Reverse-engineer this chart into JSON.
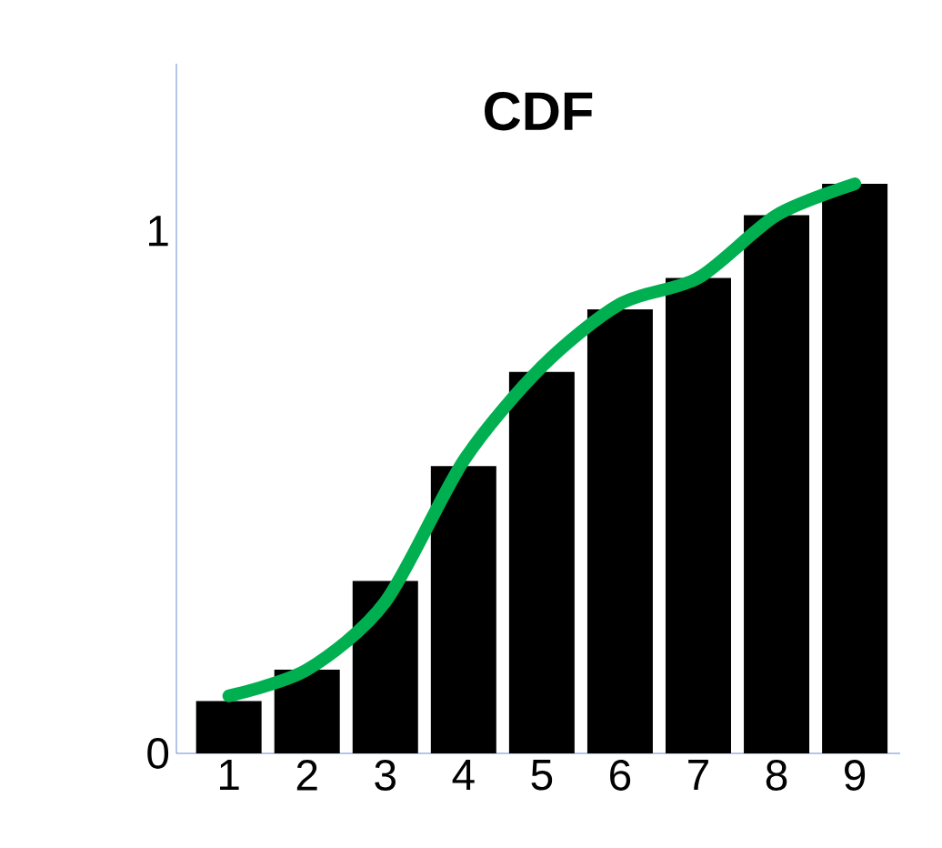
{
  "chart_data": {
    "type": "bar",
    "title": "CDF",
    "categories": [
      "1",
      "2",
      "3",
      "4",
      "5",
      "6",
      "7",
      "8",
      "9"
    ],
    "series": [
      {
        "color": "#000000",
        "values": [
          0.1,
          0.16,
          0.33,
          0.55,
          0.73,
          0.85,
          0.91,
          1.03,
          1.09
        ]
      },
      {
        "type": "line",
        "color": "#00b050",
        "values": [
          0.11,
          0.16,
          0.29,
          0.56,
          0.74,
          0.86,
          0.91,
          1.03,
          1.09
        ]
      }
    ],
    "ylim": [
      0,
      1.32
    ],
    "yticks": [
      0,
      1
    ],
    "grid": false,
    "marker": "none",
    "line_style": "solid"
  }
}
